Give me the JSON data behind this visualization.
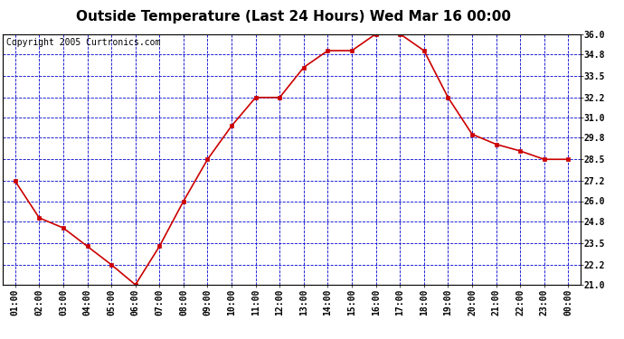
{
  "title": "Outside Temperature (Last 24 Hours) Wed Mar 16 00:00",
  "copyright": "Copyright 2005 Curtronics.com",
  "x_labels": [
    "01:00",
    "02:00",
    "03:00",
    "04:00",
    "05:00",
    "06:00",
    "07:00",
    "08:00",
    "09:00",
    "10:00",
    "11:00",
    "12:00",
    "13:00",
    "14:00",
    "15:00",
    "16:00",
    "17:00",
    "18:00",
    "19:00",
    "20:00",
    "21:00",
    "22:00",
    "23:00",
    "00:00"
  ],
  "x_values": [
    1,
    2,
    3,
    4,
    5,
    6,
    7,
    8,
    9,
    10,
    11,
    12,
    13,
    14,
    15,
    16,
    17,
    18,
    19,
    20,
    21,
    22,
    23,
    24
  ],
  "y_values": [
    27.2,
    25.0,
    24.4,
    23.3,
    22.2,
    21.0,
    23.3,
    26.0,
    28.5,
    30.5,
    32.2,
    32.2,
    34.0,
    35.0,
    35.0,
    36.0,
    36.0,
    35.0,
    32.2,
    30.0,
    29.4,
    29.0,
    28.5,
    28.5
  ],
  "ylim": [
    21.0,
    36.0
  ],
  "yticks": [
    21.0,
    22.2,
    23.5,
    24.8,
    26.0,
    27.2,
    28.5,
    29.8,
    31.0,
    32.2,
    33.5,
    34.8,
    36.0
  ],
  "line_color": "#cc0000",
  "marker_color": "#cc0000",
  "grid_color": "#0000cc",
  "background_color": "#ffffff",
  "title_fontsize": 11,
  "copyright_fontsize": 7,
  "tick_fontsize": 7
}
